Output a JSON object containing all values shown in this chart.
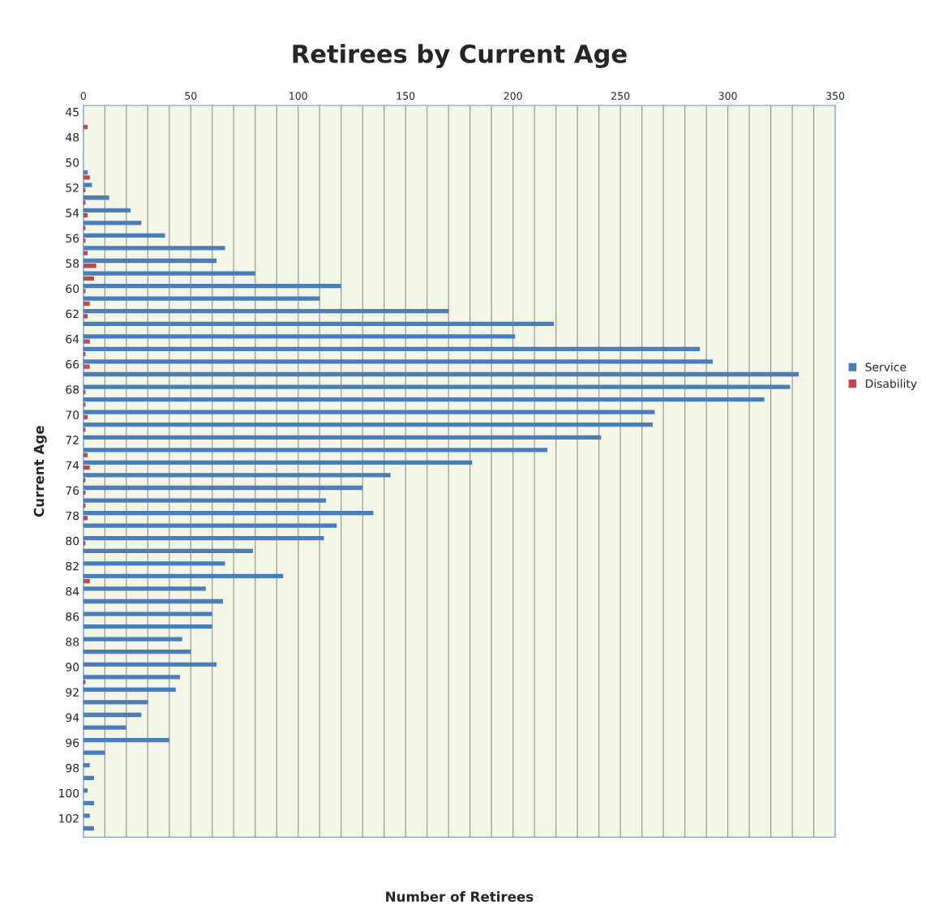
{
  "chart_data": {
    "type": "bar",
    "orientation": "horizontal",
    "title": "Retirees by Current Age",
    "xlabel": "Number of Retirees",
    "ylabel": "Current Age",
    "categories": [
      "45",
      null,
      "48",
      null,
      "50",
      null,
      "52",
      null,
      "54",
      null,
      "56",
      null,
      "58",
      null,
      "60",
      null,
      "62",
      null,
      "64",
      null,
      "66",
      null,
      "68",
      null,
      "70",
      null,
      "72",
      null,
      "74",
      null,
      "76",
      null,
      "78",
      null,
      "80",
      null,
      "82",
      null,
      "84",
      null,
      "86",
      null,
      "88",
      null,
      "90",
      null,
      "92",
      null,
      "94",
      null,
      "96",
      null,
      "98",
      null,
      "100",
      null,
      "102",
      null
    ],
    "series": [
      {
        "name": "Service",
        "color": "#4a7ebb",
        "values": [
          0,
          0,
          0,
          0,
          0,
          2,
          4,
          12,
          22,
          27,
          38,
          66,
          62,
          80,
          120,
          110,
          170,
          219,
          201,
          287,
          293,
          333,
          329,
          317,
          266,
          265,
          241,
          216,
          181,
          143,
          130,
          113,
          135,
          118,
          112,
          79,
          66,
          93,
          57,
          65,
          60,
          60,
          46,
          50,
          62,
          45,
          43,
          30,
          27,
          20,
          40,
          10,
          3,
          5,
          2,
          5,
          3,
          5
        ]
      },
      {
        "name": "Disability",
        "color": "#be4b48",
        "values": [
          0,
          2,
          0,
          0,
          0,
          3,
          1,
          1,
          2,
          1,
          1,
          2,
          6,
          5,
          1,
          3,
          2,
          0,
          3,
          1,
          3,
          0,
          1,
          1,
          2,
          1,
          0,
          2,
          3,
          1,
          1,
          1,
          2,
          0,
          1,
          0,
          0,
          3,
          0,
          0,
          0,
          0,
          0,
          0,
          0,
          1,
          0,
          0,
          0,
          0,
          0,
          0,
          0,
          0,
          0,
          0,
          0,
          0
        ]
      }
    ],
    "xlim": [
      0,
      350
    ],
    "xticks": [
      0,
      {
        "value": 10,
        "label": null
      },
      {
        "value": 20,
        "label": null
      },
      {
        "value": 30,
        "label": null
      },
      {
        "value": 40,
        "label": null
      },
      50,
      {
        "value": 60,
        "label": null
      },
      {
        "value": 70,
        "label": null
      },
      {
        "value": 80,
        "label": null
      },
      {
        "value": 90,
        "label": null
      },
      100,
      {
        "value": 110,
        "label": null
      },
      {
        "value": 120,
        "label": null
      },
      {
        "value": 130,
        "label": null
      },
      {
        "value": 140,
        "label": null
      },
      150,
      {
        "value": 160,
        "label": null
      },
      {
        "value": 170,
        "label": null
      },
      {
        "value": 180,
        "label": null
      },
      {
        "value": 190,
        "label": null
      },
      200,
      {
        "value": 210,
        "label": null
      },
      {
        "value": 220,
        "label": null
      },
      {
        "value": 230,
        "label": null
      },
      {
        "value": 240,
        "label": null
      },
      250,
      {
        "value": 260,
        "label": null
      },
      {
        "value": 270,
        "label": null
      },
      {
        "value": 280,
        "label": null
      },
      {
        "value": 290,
        "label": null
      },
      300,
      {
        "value": 310,
        "label": null
      },
      {
        "value": 320,
        "label": null
      },
      {
        "value": 330,
        "label": null
      },
      {
        "value": 340,
        "label": null
      },
      350
    ],
    "grid": "x",
    "legend": "right"
  }
}
